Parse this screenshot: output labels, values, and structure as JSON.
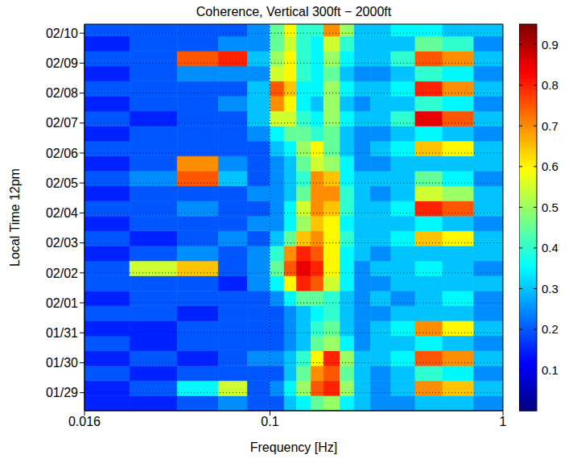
{
  "chart_data": {
    "type": "heatmap",
    "title": "Coherence, Vertical 300ft − 2000ft",
    "x_label": "Frequency [Hz]",
    "y_label": "Local Time 12pm",
    "log": "x",
    "grid": true,
    "xlim": [
      0.016,
      1
    ],
    "xticks": [
      0.016,
      0.1,
      1
    ],
    "ylim": [
      -0.6,
      12.3
    ],
    "yticks": [
      {
        "value": 0,
        "label": "01/29"
      },
      {
        "value": 1,
        "label": "01/30"
      },
      {
        "value": 2,
        "label": "01/31"
      },
      {
        "value": 3,
        "label": "02/01"
      },
      {
        "value": 4,
        "label": "02/02"
      },
      {
        "value": 5,
        "label": "02/03"
      },
      {
        "value": 6,
        "label": "02/04"
      },
      {
        "value": 7,
        "label": "02/05"
      },
      {
        "value": 8,
        "label": "02/06"
      },
      {
        "value": 9,
        "label": "02/07"
      },
      {
        "value": 10,
        "label": "02/08"
      },
      {
        "value": 11,
        "label": "02/09"
      },
      {
        "value": 12,
        "label": "02/10"
      }
    ],
    "x_edges": [
      0.016,
      0.025,
      0.04,
      0.06,
      0.08,
      0.1,
      0.115,
      0.13,
      0.15,
      0.17,
      0.2,
      0.23,
      0.27,
      0.33,
      0.42,
      0.55,
      0.75,
      1
    ],
    "y_edges": [
      -0.6,
      -0.1,
      0.4,
      0.9,
      1.4,
      1.9,
      2.4,
      2.9,
      3.4,
      3.9,
      4.4,
      4.9,
      5.4,
      5.9,
      6.4,
      6.9,
      7.4,
      7.9,
      8.4,
      8.9,
      9.4,
      9.9,
      10.4,
      10.9,
      11.4,
      11.9,
      12.3
    ],
    "cells": [
      [
        0.15,
        0.15,
        0.2,
        0.25,
        0.2,
        0.2,
        0.3,
        0.35,
        0.45,
        0.5,
        0.35,
        0.3,
        0.25,
        0.25,
        0.3,
        0.3,
        0.25
      ],
      [
        0.15,
        0.2,
        0.35,
        0.55,
        0.2,
        0.25,
        0.35,
        0.5,
        0.75,
        0.8,
        0.5,
        0.3,
        0.25,
        0.3,
        0.7,
        0.65,
        0.3
      ],
      [
        0.2,
        0.15,
        0.2,
        0.2,
        0.2,
        0.2,
        0.3,
        0.45,
        0.7,
        0.75,
        0.45,
        0.3,
        0.25,
        0.3,
        0.4,
        0.35,
        0.25
      ],
      [
        0.15,
        0.2,
        0.15,
        0.2,
        0.25,
        0.25,
        0.3,
        0.4,
        0.6,
        0.8,
        0.5,
        0.3,
        0.3,
        0.35,
        0.75,
        0.7,
        0.3
      ],
      [
        0.2,
        0.15,
        0.2,
        0.2,
        0.2,
        0.2,
        0.25,
        0.3,
        0.45,
        0.5,
        0.35,
        0.25,
        0.3,
        0.3,
        0.35,
        0.3,
        0.25
      ],
      [
        0.15,
        0.15,
        0.2,
        0.2,
        0.2,
        0.2,
        0.25,
        0.3,
        0.4,
        0.45,
        0.3,
        0.25,
        0.3,
        0.35,
        0.7,
        0.6,
        0.3
      ],
      [
        0.2,
        0.2,
        0.15,
        0.2,
        0.2,
        0.2,
        0.25,
        0.3,
        0.35,
        0.4,
        0.3,
        0.25,
        0.25,
        0.3,
        0.3,
        0.3,
        0.25
      ],
      [
        0.15,
        0.2,
        0.2,
        0.2,
        0.2,
        0.25,
        0.35,
        0.45,
        0.45,
        0.4,
        0.3,
        0.25,
        0.3,
        0.25,
        0.3,
        0.35,
        0.25
      ],
      [
        0.2,
        0.2,
        0.2,
        0.15,
        0.25,
        0.35,
        0.6,
        0.8,
        0.75,
        0.55,
        0.35,
        0.25,
        0.25,
        0.3,
        0.3,
        0.3,
        0.3
      ],
      [
        0.2,
        0.55,
        0.65,
        0.2,
        0.25,
        0.45,
        0.75,
        0.85,
        0.8,
        0.6,
        0.35,
        0.25,
        0.3,
        0.3,
        0.35,
        0.3,
        0.25
      ],
      [
        0.15,
        0.2,
        0.25,
        0.2,
        0.25,
        0.4,
        0.7,
        0.8,
        0.75,
        0.6,
        0.35,
        0.3,
        0.25,
        0.3,
        0.3,
        0.3,
        0.3
      ],
      [
        0.2,
        0.15,
        0.2,
        0.25,
        0.2,
        0.3,
        0.45,
        0.65,
        0.7,
        0.6,
        0.4,
        0.3,
        0.3,
        0.35,
        0.65,
        0.6,
        0.3
      ],
      [
        0.15,
        0.2,
        0.2,
        0.2,
        0.25,
        0.25,
        0.35,
        0.5,
        0.65,
        0.6,
        0.35,
        0.3,
        0.3,
        0.3,
        0.35,
        0.3,
        0.25
      ],
      [
        0.2,
        0.2,
        0.25,
        0.2,
        0.2,
        0.25,
        0.35,
        0.55,
        0.7,
        0.65,
        0.4,
        0.3,
        0.3,
        0.35,
        0.8,
        0.75,
        0.3
      ],
      [
        0.15,
        0.2,
        0.2,
        0.2,
        0.25,
        0.25,
        0.3,
        0.45,
        0.7,
        0.7,
        0.4,
        0.3,
        0.25,
        0.3,
        0.55,
        0.5,
        0.3
      ],
      [
        0.2,
        0.25,
        0.75,
        0.3,
        0.2,
        0.25,
        0.3,
        0.4,
        0.7,
        0.65,
        0.35,
        0.3,
        0.3,
        0.3,
        0.45,
        0.35,
        0.25
      ],
      [
        0.15,
        0.2,
        0.7,
        0.25,
        0.2,
        0.25,
        0.3,
        0.45,
        0.55,
        0.5,
        0.35,
        0.25,
        0.25,
        0.3,
        0.3,
        0.3,
        0.3
      ],
      [
        0.2,
        0.2,
        0.2,
        0.2,
        0.2,
        0.3,
        0.35,
        0.5,
        0.6,
        0.45,
        0.3,
        0.25,
        0.3,
        0.35,
        0.65,
        0.6,
        0.3
      ],
      [
        0.15,
        0.2,
        0.2,
        0.2,
        0.25,
        0.35,
        0.45,
        0.45,
        0.4,
        0.45,
        0.3,
        0.25,
        0.25,
        0.3,
        0.35,
        0.3,
        0.25
      ],
      [
        0.2,
        0.15,
        0.2,
        0.2,
        0.3,
        0.55,
        0.55,
        0.4,
        0.35,
        0.5,
        0.35,
        0.3,
        0.3,
        0.4,
        0.85,
        0.75,
        0.3
      ],
      [
        0.15,
        0.2,
        0.2,
        0.25,
        0.3,
        0.7,
        0.6,
        0.35,
        0.3,
        0.5,
        0.3,
        0.25,
        0.3,
        0.3,
        0.4,
        0.35,
        0.25
      ],
      [
        0.2,
        0.2,
        0.2,
        0.2,
        0.3,
        0.75,
        0.65,
        0.35,
        0.35,
        0.5,
        0.35,
        0.3,
        0.3,
        0.35,
        0.8,
        0.7,
        0.3
      ],
      [
        0.15,
        0.2,
        0.25,
        0.25,
        0.25,
        0.55,
        0.6,
        0.4,
        0.35,
        0.45,
        0.3,
        0.25,
        0.25,
        0.3,
        0.4,
        0.35,
        0.25
      ],
      [
        0.2,
        0.2,
        0.75,
        0.8,
        0.3,
        0.5,
        0.6,
        0.4,
        0.35,
        0.5,
        0.35,
        0.3,
        0.3,
        0.4,
        0.75,
        0.7,
        0.3
      ],
      [
        0.15,
        0.2,
        0.2,
        0.25,
        0.25,
        0.45,
        0.55,
        0.4,
        0.35,
        0.55,
        0.4,
        0.3,
        0.3,
        0.3,
        0.45,
        0.4,
        0.25
      ],
      [
        0.2,
        0.2,
        0.2,
        0.2,
        0.25,
        0.45,
        0.6,
        0.4,
        0.4,
        0.7,
        0.5,
        0.3,
        0.3,
        0.35,
        0.35,
        0.3,
        0.3
      ]
    ],
    "colorbar": {
      "range": [
        0,
        0.95
      ],
      "ticks": [
        0.1,
        0.2,
        0.3,
        0.4,
        0.5,
        0.6,
        0.7,
        0.8,
        0.9
      ]
    }
  }
}
